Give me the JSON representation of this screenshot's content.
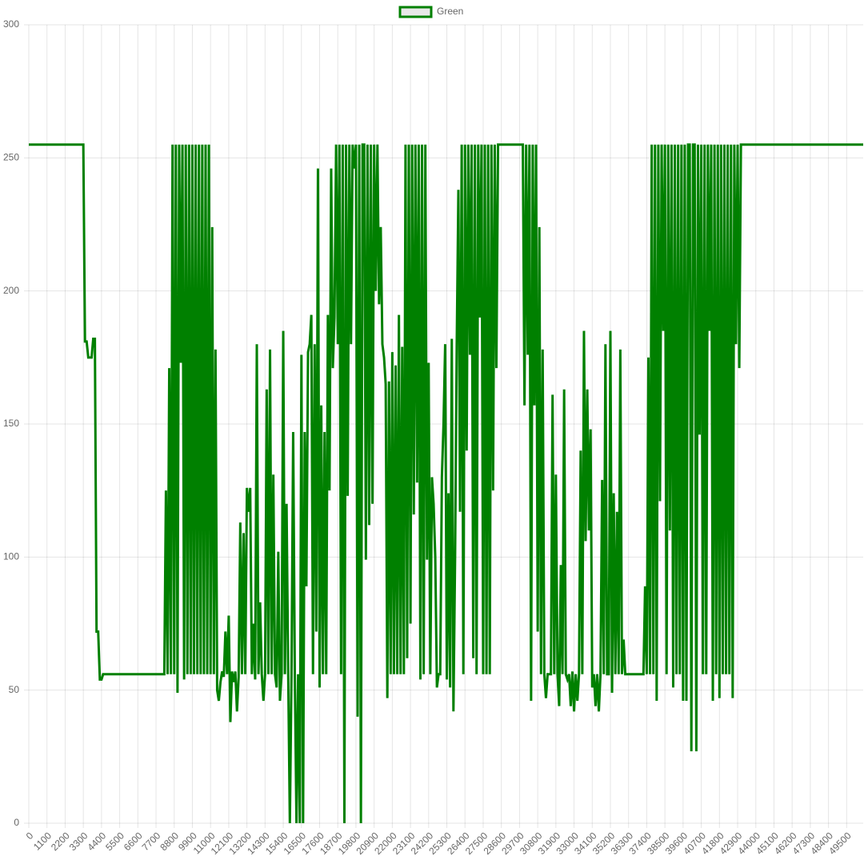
{
  "chart_data": {
    "type": "line",
    "legend": "top",
    "grid": true,
    "xlim": [
      0,
      50500
    ],
    "ylim": [
      0,
      300
    ],
    "yticks": [
      0,
      50,
      100,
      150,
      200,
      250,
      300
    ],
    "xticks": [
      0,
      1100,
      2200,
      3300,
      4400,
      5500,
      6600,
      7700,
      8800,
      9900,
      11000,
      12100,
      13200,
      14300,
      15400,
      16500,
      17600,
      18700,
      19800,
      20900,
      22000,
      23100,
      24200,
      25300,
      26400,
      27500,
      28600,
      29700,
      30800,
      31900,
      33000,
      34100,
      35200,
      36300,
      37400,
      38500,
      39600,
      40700,
      41800,
      42900,
      44000,
      45100,
      46200,
      47300,
      48400,
      49500
    ],
    "x": [
      0,
      100,
      200,
      300,
      400,
      500,
      600,
      700,
      800,
      900,
      1000,
      1100,
      1200,
      1300,
      1400,
      1500,
      1600,
      1700,
      1800,
      1900,
      2000,
      2100,
      2200,
      2300,
      2400,
      2500,
      2600,
      2700,
      2800,
      2900,
      3000,
      3100,
      3200,
      3300,
      3400,
      3500,
      3600,
      3700,
      3800,
      3900,
      4000,
      4100,
      4200,
      4300,
      4400,
      4500,
      4600,
      4700,
      4800,
      4900,
      5000,
      5100,
      5200,
      5300,
      5400,
      5500,
      5600,
      5700,
      5800,
      5900,
      6000,
      6100,
      6200,
      6300,
      6400,
      6500,
      6600,
      6700,
      6800,
      6900,
      7000,
      7100,
      7200,
      7300,
      7400,
      7500,
      7600,
      7700,
      7800,
      7900,
      8000,
      8100,
      8200,
      8300,
      8400,
      8500,
      8600,
      8700,
      8800,
      8900,
      9000,
      9100,
      9200,
      9300,
      9400,
      9500,
      9600,
      9700,
      9800,
      9900,
      10000,
      10100,
      10200,
      10300,
      10400,
      10500,
      10600,
      10700,
      10800,
      10900,
      11000,
      11100,
      11200,
      11300,
      11400,
      11500,
      11600,
      11700,
      11800,
      11900,
      12000,
      12100,
      12200,
      12300,
      12400,
      12500,
      12600,
      12700,
      12800,
      12900,
      13000,
      13100,
      13200,
      13300,
      13400,
      13500,
      13600,
      13700,
      13800,
      13900,
      14000,
      14100,
      14200,
      14300,
      14400,
      14500,
      14600,
      14700,
      14800,
      14900,
      15000,
      15100,
      15200,
      15300,
      15400,
      15500,
      15600,
      15700,
      15800,
      15900,
      16000,
      16100,
      16200,
      16300,
      16400,
      16500,
      16600,
      16700,
      16800,
      16900,
      17000,
      17100,
      17200,
      17300,
      17400,
      17500,
      17600,
      17700,
      17800,
      17900,
      18000,
      18100,
      18200,
      18300,
      18400,
      18500,
      18600,
      18700,
      18800,
      18900,
      19000,
      19100,
      19200,
      19300,
      19400,
      19500,
      19600,
      19700,
      19800,
      19900,
      20000,
      20100,
      20200,
      20300,
      20400,
      20500,
      20600,
      20700,
      20800,
      20900,
      21000,
      21100,
      21200,
      21300,
      21400,
      21500,
      21600,
      21700,
      21800,
      21900,
      22000,
      22100,
      22200,
      22300,
      22400,
      22500,
      22600,
      22700,
      22800,
      22900,
      23000,
      23100,
      23200,
      23300,
      23400,
      23500,
      23600,
      23700,
      23800,
      23900,
      24000,
      24100,
      24200,
      24300,
      24400,
      24500,
      24600,
      24700,
      24800,
      24900,
      25000,
      25100,
      25200,
      25300,
      25400,
      25500,
      25600,
      25700,
      25800,
      25900,
      26000,
      26100,
      26200,
      26300,
      26400,
      26500,
      26600,
      26700,
      26800,
      26900,
      27000,
      27100,
      27200,
      27300,
      27400,
      27500,
      27600,
      27700,
      27800,
      27900,
      28000,
      28100,
      28200,
      28300,
      28400,
      28500,
      28600,
      28700,
      28800,
      28900,
      29000,
      29100,
      29200,
      29300,
      29400,
      29500,
      29600,
      29700,
      29800,
      29900,
      30000,
      30100,
      30200,
      30300,
      30400,
      30500,
      30600,
      30700,
      30800,
      30900,
      31000,
      31100,
      31200,
      31300,
      31400,
      31500,
      31600,
      31700,
      31800,
      31900,
      32000,
      32100,
      32200,
      32300,
      32400,
      32500,
      32600,
      32700,
      32800,
      32900,
      33000,
      33100,
      33200,
      33300,
      33400,
      33500,
      33600,
      33700,
      33800,
      33900,
      34000,
      34100,
      34200,
      34300,
      34400,
      34500,
      34600,
      34700,
      34800,
      34900,
      35000,
      35100,
      35200,
      35300,
      35400,
      35500,
      35600,
      35700,
      35800,
      35900,
      36000,
      36100,
      36200,
      36300,
      36400,
      36500,
      36600,
      36700,
      36800,
      36900,
      37000,
      37100,
      37200,
      37300,
      37400,
      37500,
      37600,
      37700,
      37800,
      37900,
      38000,
      38100,
      38200,
      38300,
      38400,
      38500,
      38600,
      38700,
      38800,
      38900,
      39000,
      39100,
      39200,
      39300,
      39400,
      39500,
      39600,
      39700,
      39800,
      39900,
      40000,
      40100,
      40200,
      40300,
      40400,
      40500,
      40600,
      40700,
      40800,
      40900,
      41000,
      41100,
      41200,
      41300,
      41400,
      41500,
      41600,
      41700,
      41800,
      41900,
      42000,
      42100,
      42200,
      42300,
      42400,
      42500,
      42600,
      42700,
      42800,
      42900,
      43000,
      43100,
      43200,
      43300,
      43400,
      43500,
      43600,
      43700,
      43800,
      43900,
      44000,
      44100,
      44200,
      44300,
      44400,
      44500,
      44600,
      44700,
      44800,
      44900,
      45000,
      45100,
      45200,
      45300,
      45400,
      45500,
      45600,
      45700,
      45800,
      45900,
      46000,
      46100,
      46200,
      46300,
      46400,
      46500,
      46600,
      46700,
      46800,
      46900,
      47000,
      47100,
      47200,
      47300,
      47400,
      47500,
      47600,
      47700,
      47800,
      47900,
      48000,
      48100,
      48200,
      48300,
      48400,
      48500,
      48600,
      48700,
      48800,
      48900,
      49000,
      49100,
      49200,
      49300,
      49400,
      49500,
      49600,
      49700,
      49800,
      49900,
      50000,
      50100,
      50200,
      50300,
      50400,
      50500
    ],
    "series": [
      {
        "name": "Green",
        "color": "green",
        "values": [
          255,
          255,
          255,
          255,
          255,
          255,
          255,
          255,
          255,
          255,
          255,
          255,
          255,
          255,
          255,
          255,
          255,
          255,
          255,
          255,
          255,
          255,
          255,
          255,
          255,
          255,
          255,
          255,
          255,
          255,
          255,
          255,
          255,
          255,
          181,
          181,
          175,
          175,
          175,
          182,
          182,
          72,
          72,
          54,
          54,
          56,
          56,
          56,
          56,
          56,
          56,
          56,
          56,
          56,
          56,
          56,
          56,
          56,
          56,
          56,
          56,
          56,
          56,
          56,
          56,
          56,
          56,
          56,
          56,
          56,
          56,
          56,
          56,
          56,
          56,
          56,
          56,
          56,
          56,
          56,
          56,
          56,
          56,
          125,
          56,
          171,
          56,
          255,
          56,
          255,
          49,
          255,
          173,
          255,
          54,
          255,
          56,
          255,
          56,
          255,
          56,
          255,
          56,
          255,
          56,
          255,
          56,
          255,
          56,
          255,
          56,
          224,
          56,
          178,
          50,
          46,
          53,
          57,
          55,
          72,
          56,
          78,
          38,
          57,
          53,
          57,
          42,
          55,
          113,
          56,
          109,
          56,
          126,
          117,
          126,
          56,
          75,
          54,
          180,
          56,
          83,
          56,
          46,
          56,
          163,
          56,
          178,
          56,
          131,
          56,
          51,
          102,
          46,
          56,
          185,
          56,
          120,
          56,
          0,
          56,
          147,
          56,
          0,
          56,
          0,
          176,
          0,
          147,
          89,
          177,
          180,
          191,
          56,
          180,
          72,
          246,
          51,
          157,
          56,
          147,
          56,
          191,
          125,
          246,
          171,
          190,
          255,
          180,
          255,
          56,
          255,
          0,
          255,
          123,
          255,
          180,
          255,
          246,
          255,
          40,
          255,
          0,
          255,
          255,
          99,
          255,
          112,
          255,
          120,
          255,
          200,
          255,
          195,
          224,
          180,
          175,
          165,
          47,
          166,
          56,
          177,
          56,
          172,
          56,
          191,
          56,
          179,
          56,
          255,
          62,
          255,
          75,
          255,
          116,
          255,
          128,
          255,
          54,
          255,
          56,
          255,
          99,
          173,
          56,
          130,
          120,
          100,
          51,
          56,
          56,
          130,
          150,
          180,
          54,
          124,
          51,
          182,
          42,
          100,
          180,
          238,
          117,
          255,
          56,
          255,
          140,
          255,
          176,
          255,
          62,
          255,
          56,
          255,
          190,
          255,
          56,
          255,
          56,
          255,
          56,
          255,
          125,
          255,
          171,
          255,
          255,
          255,
          255,
          255,
          255,
          255,
          255,
          255,
          255,
          255,
          255,
          255,
          255,
          255,
          255,
          157,
          255,
          176,
          255,
          46,
          255,
          157,
          255,
          72,
          224,
          56,
          178,
          56,
          47,
          56,
          56,
          56,
          161,
          56,
          131,
          56,
          44,
          97,
          56,
          163,
          56,
          54,
          56,
          44,
          57,
          42,
          56,
          46,
          56,
          140,
          56,
          185,
          106,
          163,
          110,
          148,
          51,
          56,
          44,
          56,
          42,
          56,
          129,
          56,
          180,
          56,
          56,
          185,
          49,
          124,
          56,
          117,
          56,
          178,
          56,
          69,
          56,
          56,
          56,
          56,
          56,
          56,
          56,
          56,
          56,
          56,
          56,
          56,
          89,
          56,
          175,
          56,
          255,
          56,
          255,
          46,
          255,
          121,
          255,
          185,
          255,
          56,
          255,
          110,
          255,
          51,
          255,
          56,
          255,
          56,
          255,
          46,
          255,
          46,
          255,
          255,
          27,
          255,
          255,
          27,
          255,
          146,
          255,
          56,
          255,
          56,
          255,
          185,
          255,
          46,
          255,
          56,
          255,
          47,
          255,
          56,
          255,
          56,
          255,
          56,
          255,
          47,
          255,
          180,
          255,
          171,
          255,
          255,
          255,
          255,
          255,
          255,
          255,
          255,
          255,
          255,
          255,
          255,
          255,
          255,
          255,
          255,
          255,
          255,
          255,
          255,
          255,
          255,
          255,
          255,
          255,
          255,
          255,
          255,
          255,
          255,
          255,
          255,
          255,
          255,
          255,
          255,
          255,
          255,
          255,
          255,
          255,
          255,
          255,
          255,
          255,
          255,
          255,
          255,
          255,
          255,
          255,
          255,
          255,
          255,
          255,
          255,
          255,
          255,
          255,
          255,
          255,
          255,
          255,
          255,
          255,
          255,
          255,
          255,
          255,
          255,
          255,
          255,
          255,
          255,
          255
        ]
      }
    ]
  }
}
